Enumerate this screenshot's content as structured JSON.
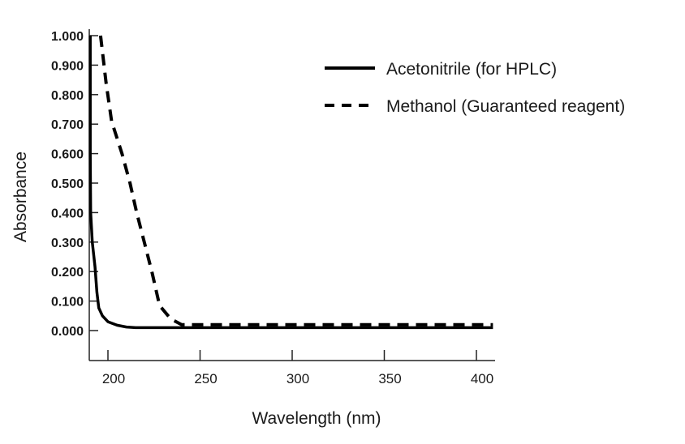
{
  "chart_data": {
    "type": "line",
    "title": "",
    "xlabel": "Wavelength (nm)",
    "ylabel": "Absorbance",
    "xlim": [
      190,
      409
    ],
    "ylim": [
      -0.1,
      1.0
    ],
    "xticks": [
      200,
      250,
      300,
      350,
      400
    ],
    "xtick_labels": [
      "200",
      "250",
      "300",
      "350",
      "400"
    ],
    "yticks": [
      0,
      0.1,
      0.2,
      0.3,
      0.4,
      0.5,
      0.6,
      0.7,
      0.8,
      0.9,
      1.0
    ],
    "ytick_labels": [
      "0.000",
      "0.100",
      "0.200",
      "0.300",
      "0.400",
      "0.500",
      "0.600",
      "0.700",
      "0.800",
      "0.900",
      "1.000"
    ],
    "grid": false,
    "legend_position": "top-right",
    "series": [
      {
        "name": "Acetonitrile (for HPLC)",
        "style": "solid",
        "color": "#000000",
        "x": [
          190.4,
          190.4,
          190.6,
          191.5,
          193,
          194,
          195,
          197,
          200,
          205,
          210,
          215,
          250,
          300,
          350,
          400,
          409
        ],
        "y": [
          1.0,
          0.6,
          0.4,
          0.3,
          0.215,
          0.13,
          0.077,
          0.05,
          0.03,
          0.018,
          0.012,
          0.01,
          0.01,
          0.01,
          0.01,
          0.01,
          0.01
        ]
      },
      {
        "name": "Methanol (Guaranteed reagent)",
        "style": "dashed",
        "color": "#000000",
        "x": [
          196,
          199,
          202,
          207.6,
          212,
          215.6,
          219.5,
          224,
          228,
          234,
          240,
          250,
          300,
          350,
          400,
          409
        ],
        "y": [
          1.0,
          0.84,
          0.71,
          0.6,
          0.5,
          0.4,
          0.305,
          0.195,
          0.085,
          0.04,
          0.02,
          0.02,
          0.02,
          0.02,
          0.02,
          0.02
        ]
      }
    ]
  }
}
